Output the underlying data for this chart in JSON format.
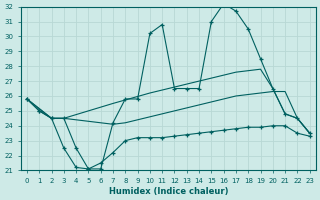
{
  "xlabel": "Humidex (Indice chaleur)",
  "xlim": [
    -0.5,
    23.5
  ],
  "ylim": [
    21,
    32
  ],
  "yticks": [
    21,
    22,
    23,
    24,
    25,
    26,
    27,
    28,
    29,
    30,
    31,
    32
  ],
  "xticks": [
    0,
    1,
    2,
    3,
    4,
    5,
    6,
    7,
    8,
    9,
    10,
    11,
    12,
    13,
    14,
    15,
    16,
    17,
    18,
    19,
    20,
    21,
    22,
    23
  ],
  "bg_color": "#ceeae7",
  "grid_color": "#b8d8d5",
  "line_color": "#006060",
  "lines": [
    {
      "x": [
        0,
        1,
        2,
        3,
        4,
        5,
        6,
        7,
        8,
        9,
        10,
        11,
        12,
        13,
        14,
        15,
        16,
        17,
        18,
        19,
        20,
        21,
        22,
        23
      ],
      "y": [
        25.8,
        25.0,
        24.5,
        24.5,
        22.5,
        21.1,
        21.1,
        24.2,
        25.8,
        25.8,
        30.2,
        30.8,
        26.5,
        26.5,
        26.5,
        31.0,
        32.2,
        31.7,
        30.5,
        28.5,
        26.5,
        24.8,
        24.5,
        23.5
      ],
      "marker": true
    },
    {
      "x": [
        0,
        2,
        3,
        7,
        10,
        11,
        12,
        13,
        14,
        15,
        16,
        17,
        18,
        19,
        20,
        21,
        22,
        23
      ],
      "y": [
        25.8,
        24.5,
        24.5,
        25.5,
        26.2,
        26.4,
        26.6,
        26.8,
        27.0,
        27.2,
        27.4,
        27.6,
        27.7,
        27.8,
        26.5,
        24.8,
        24.5,
        23.5
      ],
      "marker": false
    },
    {
      "x": [
        0,
        2,
        3,
        4,
        5,
        6,
        7,
        8,
        9,
        10,
        11,
        12,
        13,
        14,
        15,
        16,
        17,
        18,
        19,
        20,
        21,
        22,
        23
      ],
      "y": [
        25.8,
        24.5,
        24.5,
        24.4,
        24.3,
        24.2,
        24.1,
        24.2,
        24.4,
        24.6,
        24.8,
        25.0,
        25.2,
        25.4,
        25.6,
        25.8,
        26.0,
        26.1,
        26.2,
        26.3,
        26.3,
        24.5,
        23.5
      ],
      "marker": false
    },
    {
      "x": [
        0,
        1,
        2,
        3,
        4,
        5,
        6,
        7,
        8,
        9,
        10,
        11,
        12,
        13,
        14,
        15,
        16,
        17,
        18,
        19,
        20,
        21,
        22,
        23
      ],
      "y": [
        25.8,
        25.0,
        24.5,
        22.5,
        21.2,
        21.1,
        21.5,
        22.2,
        23.0,
        23.2,
        23.2,
        23.2,
        23.3,
        23.4,
        23.5,
        23.6,
        23.7,
        23.8,
        23.9,
        23.9,
        24.0,
        24.0,
        23.5,
        23.3
      ],
      "marker": true
    }
  ]
}
